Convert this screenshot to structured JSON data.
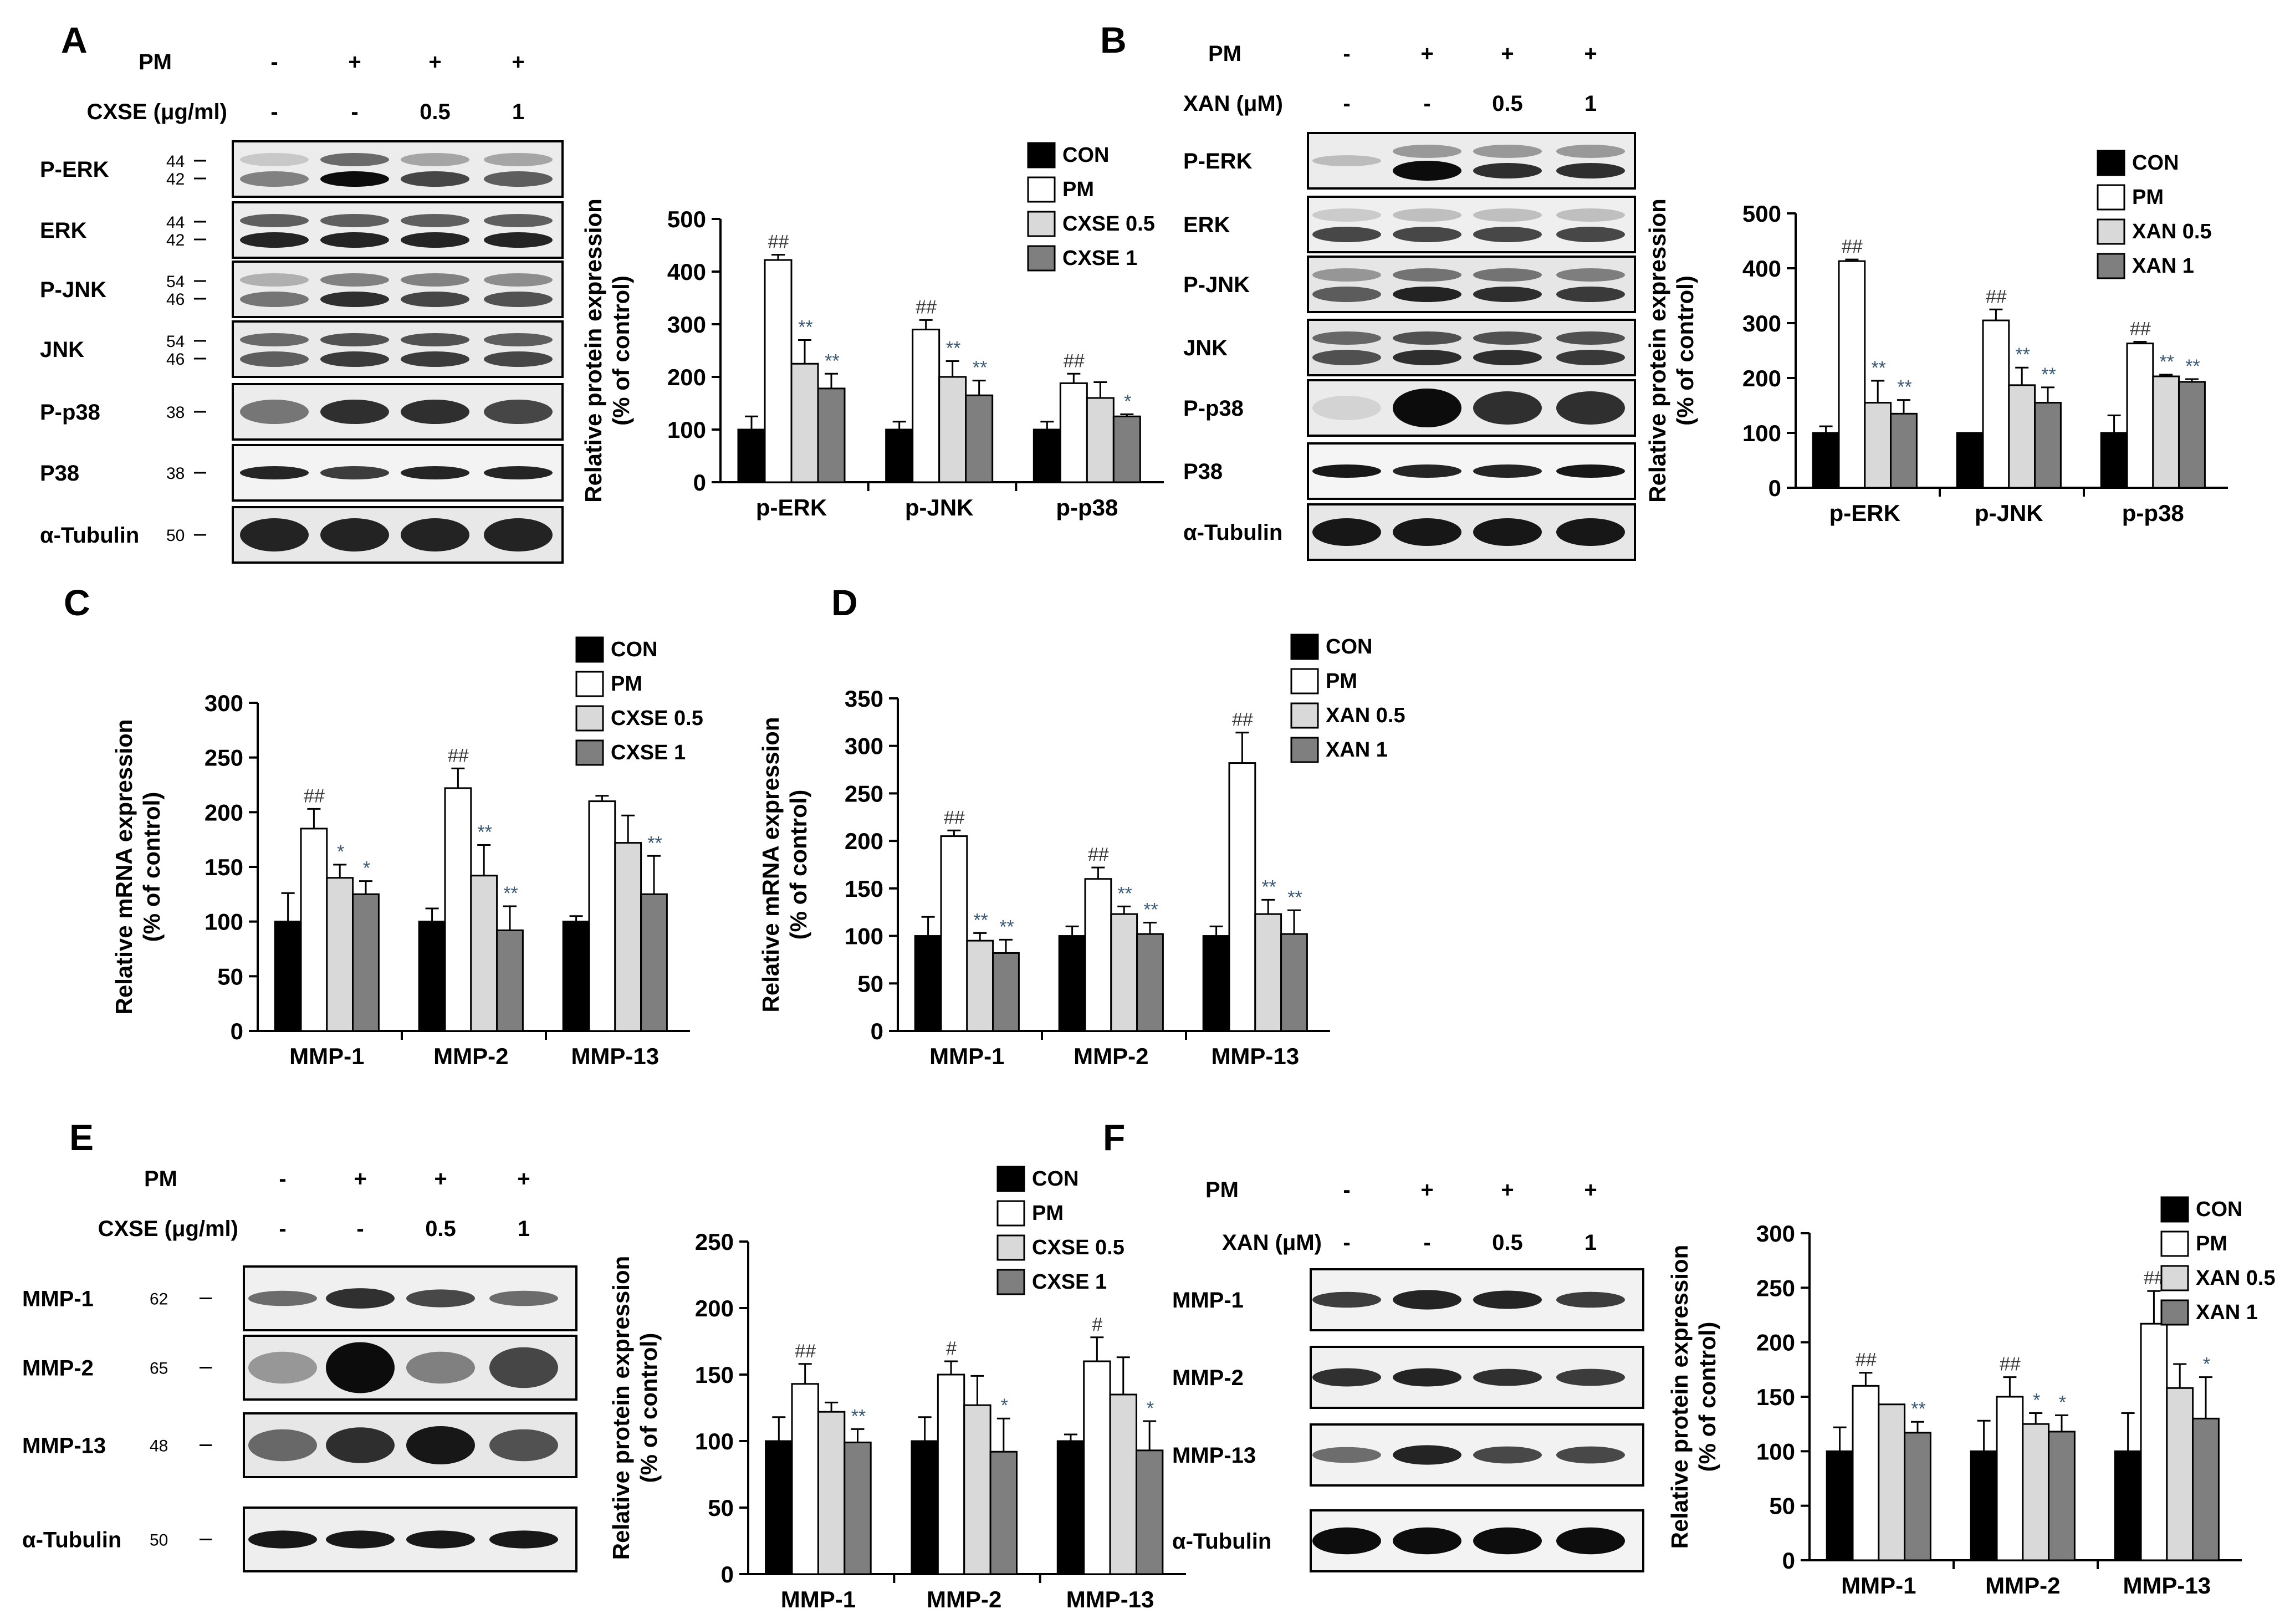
{
  "panel_letters": {
    "A": "A",
    "B": "B",
    "C": "C",
    "D": "D",
    "E": "E",
    "F": "F"
  },
  "blot_a": {
    "cond": [
      {
        "label": "PM",
        "vals": [
          "-",
          "+",
          "+",
          "+"
        ]
      },
      {
        "label": "CXSE (μg/ml)",
        "vals": [
          "-",
          "-",
          "0.5",
          "1"
        ]
      }
    ],
    "rows": [
      {
        "label": "P-ERK",
        "mw": [
          "44",
          "42"
        ]
      },
      {
        "label": "ERK",
        "mw": [
          "44",
          "42"
        ]
      },
      {
        "label": "P-JNK",
        "mw": [
          "54",
          "46"
        ]
      },
      {
        "label": "JNK",
        "mw": [
          "54",
          "46"
        ]
      },
      {
        "label": "P-p38",
        "mw": [
          "38"
        ]
      },
      {
        "label": "P38",
        "mw": [
          "38"
        ]
      },
      {
        "label": "α-Tubulin",
        "mw": [
          "50"
        ]
      }
    ]
  },
  "blot_b": {
    "cond": [
      {
        "label": "PM",
        "vals": [
          "-",
          "+",
          "+",
          "+"
        ]
      },
      {
        "label": "XAN (μM)",
        "vals": [
          "-",
          "-",
          "0.5",
          "1"
        ]
      }
    ],
    "rows": [
      {
        "label": "P-ERK",
        "mw": []
      },
      {
        "label": "ERK",
        "mw": []
      },
      {
        "label": "P-JNK",
        "mw": []
      },
      {
        "label": "JNK",
        "mw": []
      },
      {
        "label": "P-p38",
        "mw": []
      },
      {
        "label": "P38",
        "mw": []
      },
      {
        "label": "α-Tubulin",
        "mw": []
      }
    ]
  },
  "blot_e": {
    "cond": [
      {
        "label": "PM",
        "vals": [
          "-",
          "+",
          "+",
          "+"
        ]
      },
      {
        "label": "CXSE (μg/ml)",
        "vals": [
          "-",
          "-",
          "0.5",
          "1"
        ]
      }
    ],
    "rows": [
      {
        "label": "MMP-1",
        "mw": [
          "62"
        ]
      },
      {
        "label": "MMP-2",
        "mw": [
          "65"
        ]
      },
      {
        "label": "MMP-13",
        "mw": [
          "48"
        ]
      },
      {
        "label": "α-Tubulin",
        "mw": [
          "50"
        ]
      }
    ]
  },
  "blot_f": {
    "cond": [
      {
        "label": "PM",
        "vals": [
          "-",
          "+",
          "+",
          "+"
        ]
      },
      {
        "label": "XAN (μM)",
        "vals": [
          "-",
          "-",
          "0.5",
          "1"
        ]
      }
    ],
    "rows": [
      {
        "label": "MMP-1",
        "mw": []
      },
      {
        "label": "MMP-2",
        "mw": []
      },
      {
        "label": "MMP-13",
        "mw": []
      },
      {
        "label": "α-Tubulin",
        "mw": []
      }
    ]
  },
  "series_colors": [
    "#000000",
    "#ffffff",
    "#d9d9d9",
    "#7f7f7f"
  ],
  "chart_data": [
    {
      "id": "A",
      "type": "bar",
      "ylabel": "Relative protein expression",
      "ylabel2": "(% of control)",
      "ylim": [
        0,
        500
      ],
      "yticks": [
        0,
        100,
        200,
        300,
        400,
        500
      ],
      "categories": [
        "p-ERK",
        "p-JNK",
        "p-p38"
      ],
      "series": [
        {
          "name": "CON",
          "values": [
            100,
            100,
            100
          ],
          "errors": [
            25,
            15,
            15
          ],
          "marks": [
            "",
            "",
            ""
          ]
        },
        {
          "name": "PM",
          "values": [
            422,
            290,
            188
          ],
          "errors": [
            10,
            18,
            18
          ],
          "marks": [
            "##",
            "##",
            "##"
          ]
        },
        {
          "name": "CXSE 0.5",
          "values": [
            225,
            200,
            160
          ],
          "errors": [
            45,
            30,
            30
          ],
          "marks": [
            "**",
            "**",
            ""
          ]
        },
        {
          "name": "CXSE 1",
          "values": [
            178,
            165,
            125
          ],
          "errors": [
            28,
            28,
            4
          ],
          "marks": [
            "**",
            "**",
            "*"
          ]
        }
      ],
      "legend": "top-right"
    },
    {
      "id": "B",
      "type": "bar",
      "ylabel": "Relative protein expression",
      "ylabel2": "(% of control)",
      "ylim": [
        0,
        500
      ],
      "yticks": [
        0,
        100,
        200,
        300,
        400,
        500
      ],
      "categories": [
        "p-ERK",
        "p-JNK",
        "p-p38"
      ],
      "series": [
        {
          "name": "CON",
          "values": [
            100,
            100,
            100
          ],
          "errors": [
            12,
            0,
            32
          ],
          "marks": [
            "",
            "",
            ""
          ]
        },
        {
          "name": "PM",
          "values": [
            413,
            305,
            263
          ],
          "errors": [
            3,
            20,
            3
          ],
          "marks": [
            "##",
            "##",
            "##"
          ]
        },
        {
          "name": "XAN 0.5",
          "values": [
            155,
            187,
            203
          ],
          "errors": [
            40,
            32,
            3
          ],
          "marks": [
            "**",
            "**",
            "**"
          ]
        },
        {
          "name": "XAN 1",
          "values": [
            135,
            155,
            193
          ],
          "errors": [
            25,
            28,
            5
          ],
          "marks": [
            "**",
            "**",
            "**"
          ]
        }
      ],
      "legend": "top-right"
    },
    {
      "id": "C",
      "type": "bar",
      "ylabel": "Relative mRNA expression",
      "ylabel2": "(% of control)",
      "ylim": [
        0,
        300
      ],
      "yticks": [
        0,
        50,
        100,
        150,
        200,
        250,
        300
      ],
      "categories": [
        "MMP-1",
        "MMP-2",
        "MMP-13"
      ],
      "series": [
        {
          "name": "CON",
          "values": [
            100,
            100,
            100
          ],
          "errors": [
            26,
            12,
            5
          ],
          "marks": [
            "",
            "",
            ""
          ]
        },
        {
          "name": "PM",
          "values": [
            185,
            222,
            210
          ],
          "errors": [
            18,
            18,
            5
          ],
          "marks": [
            "##",
            "##",
            ""
          ]
        },
        {
          "name": "CXSE 0.5",
          "values": [
            140,
            142,
            172
          ],
          "errors": [
            12,
            28,
            25
          ],
          "marks": [
            "*",
            "**",
            ""
          ]
        },
        {
          "name": "CXSE 1",
          "values": [
            125,
            92,
            125
          ],
          "errors": [
            12,
            22,
            35
          ],
          "marks": [
            "*",
            "**",
            "**"
          ]
        }
      ],
      "legend": "top-right"
    },
    {
      "id": "D",
      "type": "bar",
      "ylabel": "Relative mRNA expression",
      "ylabel2": "(% of control)",
      "ylim": [
        0,
        350
      ],
      "yticks": [
        0,
        50,
        100,
        150,
        200,
        250,
        300,
        350
      ],
      "categories": [
        "MMP-1",
        "MMP-2",
        "MMP-13"
      ],
      "series": [
        {
          "name": "CON",
          "values": [
            100,
            100,
            100
          ],
          "errors": [
            20,
            10,
            10
          ],
          "marks": [
            "",
            "",
            ""
          ]
        },
        {
          "name": "PM",
          "values": [
            205,
            160,
            282
          ],
          "errors": [
            6,
            12,
            32
          ],
          "marks": [
            "##",
            "##",
            "##"
          ]
        },
        {
          "name": "XAN 0.5",
          "values": [
            95,
            123,
            123
          ],
          "errors": [
            8,
            8,
            15
          ],
          "marks": [
            "**",
            "**",
            "**"
          ]
        },
        {
          "name": "XAN 1",
          "values": [
            82,
            102,
            102
          ],
          "errors": [
            14,
            12,
            25
          ],
          "marks": [
            "**",
            "**",
            "**"
          ]
        }
      ],
      "legend": "top-right"
    },
    {
      "id": "E",
      "type": "bar",
      "ylabel": "Relative protein expression",
      "ylabel2": "(% of control)",
      "ylim": [
        0,
        250
      ],
      "yticks": [
        0,
        50,
        100,
        150,
        200,
        250
      ],
      "categories": [
        "MMP-1",
        "MMP-2",
        "MMP-13"
      ],
      "series": [
        {
          "name": "CON",
          "values": [
            100,
            100,
            100
          ],
          "errors": [
            18,
            18,
            5
          ],
          "marks": [
            "",
            "",
            ""
          ]
        },
        {
          "name": "PM",
          "values": [
            143,
            150,
            160
          ],
          "errors": [
            15,
            10,
            18
          ],
          "marks": [
            "##",
            "#",
            "#"
          ]
        },
        {
          "name": "CXSE 0.5",
          "values": [
            122,
            127,
            135
          ],
          "errors": [
            7,
            22,
            28
          ],
          "marks": [
            "",
            "",
            ""
          ]
        },
        {
          "name": "CXSE 1",
          "values": [
            99,
            92,
            93
          ],
          "errors": [
            10,
            25,
            22
          ],
          "marks": [
            "**",
            "*",
            "*"
          ]
        }
      ],
      "legend": "top-right"
    },
    {
      "id": "F",
      "type": "bar",
      "ylabel": "Relative protein expression",
      "ylabel2": "(% of control)",
      "ylim": [
        0,
        300
      ],
      "yticks": [
        0,
        50,
        100,
        150,
        200,
        250,
        300
      ],
      "categories": [
        "MMP-1",
        "MMP-2",
        "MMP-13"
      ],
      "series": [
        {
          "name": "CON",
          "values": [
            100,
            100,
            100
          ],
          "errors": [
            22,
            28,
            35
          ],
          "marks": [
            "",
            "",
            ""
          ]
        },
        {
          "name": "PM",
          "values": [
            160,
            150,
            217
          ],
          "errors": [
            12,
            18,
            30
          ],
          "marks": [
            "##",
            "##",
            "##"
          ]
        },
        {
          "name": "XAN 0.5",
          "values": [
            143,
            125,
            158
          ],
          "errors": [
            0,
            10,
            22
          ],
          "marks": [
            "",
            "*",
            ""
          ]
        },
        {
          "name": "XAN 1",
          "values": [
            117,
            118,
            130
          ],
          "errors": [
            10,
            15,
            38
          ],
          "marks": [
            "**",
            "*",
            "*"
          ]
        }
      ],
      "legend": "top-right"
    }
  ]
}
